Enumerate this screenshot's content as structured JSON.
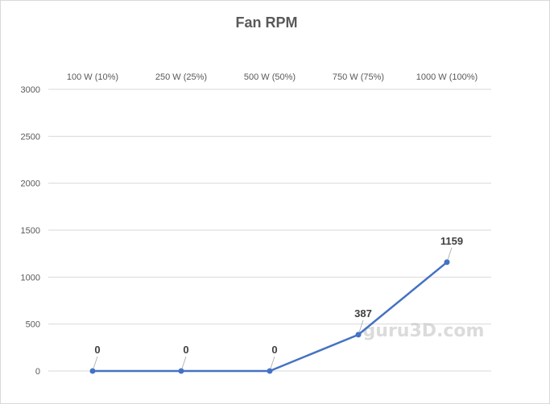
{
  "chart_data": {
    "type": "line",
    "title": "Fan RPM",
    "categories": [
      "100 W (10%)",
      "250 W (25%)",
      "500 W (50%)",
      "750 W (75%)",
      "1000 W (100%)"
    ],
    "series": [
      {
        "values": [
          0,
          0,
          0,
          387,
          1159
        ],
        "color": "#4472c4"
      }
    ],
    "data_labels": [
      "0",
      "0",
      "0",
      "387",
      "1159"
    ],
    "ylim": [
      0,
      3000
    ],
    "yticks": [
      0,
      500,
      1000,
      1500,
      2000,
      2500,
      3000
    ],
    "ytick_labels": [
      "0",
      "500",
      "1000",
      "1500",
      "2000",
      "2500",
      "3000"
    ],
    "xlabel": "",
    "ylabel": "",
    "grid": true,
    "x_axis_labels_position": "top",
    "legend": "none"
  },
  "watermark": "guru3D.com"
}
